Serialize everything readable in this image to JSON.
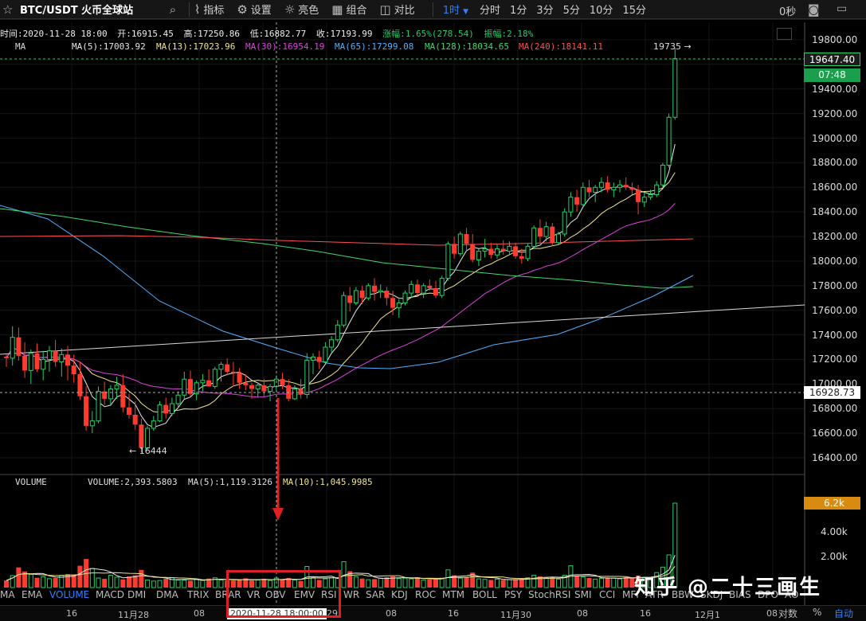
{
  "toolbar": {
    "favorite_icon": "star-outline-icon",
    "symbol": "BTC/USDT 火币全球站",
    "buttons": [
      {
        "icon": "indicator-icon",
        "label": "指标"
      },
      {
        "icon": "gear-icon",
        "label": "设置"
      },
      {
        "icon": "sun-icon",
        "label": "亮色"
      },
      {
        "icon": "grid-icon",
        "label": "组合"
      },
      {
        "icon": "compare-icon",
        "label": "对比"
      }
    ],
    "interval": "1时",
    "periods": [
      "分时",
      "1分",
      "3分",
      "5分",
      "10分",
      "15分"
    ],
    "seconds": "0秒"
  },
  "ohlc": {
    "time_label": "时间:2020-11-28 18:00",
    "open": "开:16915.45",
    "high": "高:17250.86",
    "low": "低:16882.77",
    "close": "收:17193.99",
    "change": "涨幅:1.65%(278.54)",
    "amplitude": "振幅:2.18%"
  },
  "ma": {
    "label": "MA",
    "items": [
      {
        "text": "MA(5):17003.92",
        "color": "#e8e8e8"
      },
      {
        "text": "MA(13):17023.96",
        "color": "#f0e68c"
      },
      {
        "text": "MA(30):16954.19",
        "color": "#e040e0"
      },
      {
        "text": "MA(65):17299.08",
        "color": "#4fb0ff"
      },
      {
        "text": "MA(128):18034.65",
        "color": "#3fd86f"
      },
      {
        "text": "MA(240):18141.11",
        "color": "#ff5050"
      }
    ]
  },
  "annotations": {
    "high": "19735 →",
    "low": "← 16444"
  },
  "volume": {
    "label": "VOLUME",
    "value": "VOLUME:2,393.5803",
    "ma5": "MA(5):1,119.3126",
    "ma10": "MA(10):1,045.9985",
    "last_tag": "6.2k"
  },
  "price_axis": {
    "labels": [
      "19800.00",
      "19400.00",
      "19200.00",
      "19000.00",
      "18800.00",
      "18600.00",
      "18400.00",
      "18200.00",
      "18000.00",
      "17800.00",
      "17600.00",
      "17400.00",
      "17200.00",
      "17000.00",
      "16800.00",
      "16600.00",
      "16400.00"
    ],
    "last_price": "19647.40",
    "countdown": "07:48",
    "cross_price": "16928.73",
    "vol_labels": [
      "4.00k",
      "2.00k"
    ]
  },
  "indicators": [
    "MA",
    "EMA",
    "VOLUME",
    "MACD",
    "DMI",
    "DMA",
    "TRIX",
    "BRAR",
    "VR",
    "OBV",
    "EMV",
    "RSI",
    "WR",
    "SAR",
    "KDJ",
    "ROC",
    "MTM",
    "BOLL",
    "PSY",
    "StochRSI",
    "SMI",
    "CCI",
    "MFI",
    "ATR",
    "BBW",
    "SKDJ",
    "BIAS",
    "DPO",
    "AO"
  ],
  "active_indicator": "VOLUME",
  "time_axis": {
    "labels": [
      "16",
      "11月28",
      "08",
      "16",
      "29",
      "08",
      "16",
      "11月30",
      "08",
      "16",
      "12月1",
      "08"
    ],
    "cursor_time": "2020-11-28 18:00:00",
    "log_label": "对数",
    "pct_label": "%",
    "auto_label": "自动"
  },
  "watermark": "知乎 @二十三画生",
  "colors": {
    "up": "#1dd26a",
    "down": "#ff3b30",
    "accent": "#2f7fff"
  },
  "chart_data": {
    "type": "candlestick",
    "symbol": "BTC/USDT",
    "interval": "1h",
    "y_range": [
      16300,
      19850
    ],
    "volume_range": [
      0,
      6500
    ],
    "overlays": [
      {
        "name": "MA(5)",
        "color": "#e8e8e8"
      },
      {
        "name": "MA(13)",
        "color": "#f0e68c"
      },
      {
        "name": "MA(30)",
        "color": "#e040e0"
      },
      {
        "name": "MA(65)",
        "color": "#4fb0ff"
      },
      {
        "name": "MA(128)",
        "color": "#3fd86f"
      },
      {
        "name": "MA(240)",
        "color": "#ff5050"
      }
    ],
    "hovered_candle": {
      "time": "2020-11-28 18:00",
      "open": 16915.45,
      "high": 17250.86,
      "low": 16882.77,
      "close": 17193.99
    },
    "session_high": 19735,
    "session_low": 16444,
    "last_price": 19647.4,
    "candles": [
      [
        17222,
        17240,
        17140,
        17210
      ],
      [
        17210,
        17470,
        17150,
        17380
      ],
      [
        17380,
        17460,
        17190,
        17230
      ],
      [
        17230,
        17340,
        17050,
        17110
      ],
      [
        17110,
        17280,
        17000,
        17250
      ],
      [
        17250,
        17330,
        17100,
        17120
      ],
      [
        17120,
        17270,
        17030,
        17200
      ],
      [
        17200,
        17310,
        17100,
        17270
      ],
      [
        17270,
        17360,
        17140,
        17180
      ],
      [
        17180,
        17290,
        17060,
        17240
      ],
      [
        17240,
        17310,
        17030,
        17150
      ],
      [
        17150,
        17240,
        17010,
        17080
      ],
      [
        17080,
        17180,
        16870,
        16900
      ],
      [
        16900,
        16980,
        16620,
        16660
      ],
      [
        16660,
        16780,
        16600,
        16700
      ],
      [
        16700,
        16980,
        16680,
        16940
      ],
      [
        16940,
        17020,
        16830,
        16880
      ],
      [
        16880,
        16990,
        16830,
        16960
      ],
      [
        16960,
        17060,
        16880,
        16990
      ],
      [
        16990,
        17080,
        16770,
        16810
      ],
      [
        16810,
        16920,
        16720,
        16750
      ],
      [
        16750,
        16860,
        16630,
        16670
      ],
      [
        16670,
        16720,
        16444,
        16480
      ],
      [
        16480,
        16660,
        16460,
        16640
      ],
      [
        16640,
        16740,
        16620,
        16700
      ],
      [
        16700,
        16860,
        16690,
        16830
      ],
      [
        16830,
        16890,
        16720,
        16760
      ],
      [
        16760,
        16890,
        16740,
        16840
      ],
      [
        16840,
        16940,
        16800,
        16910
      ],
      [
        16910,
        17100,
        16880,
        17040
      ],
      [
        17040,
        17110,
        16900,
        16920
      ],
      [
        16920,
        17030,
        16870,
        17010
      ],
      [
        17010,
        17080,
        16940,
        17030
      ],
      [
        17030,
        17120,
        16980,
        16980
      ],
      [
        16980,
        17140,
        16960,
        17120
      ],
      [
        17120,
        17180,
        17020,
        17160
      ],
      [
        17160,
        17210,
        17070,
        17100
      ],
      [
        17100,
        17180,
        16980,
        17090
      ],
      [
        17090,
        17130,
        16960,
        17010
      ],
      [
        17010,
        17080,
        16950,
        16990
      ],
      [
        16990,
        17010,
        16880,
        16960
      ],
      [
        16960,
        17010,
        16890,
        16990
      ],
      [
        16990,
        17040,
        16900,
        16940
      ],
      [
        16940,
        17000,
        16860,
        16980
      ],
      [
        16980,
        17070,
        16950,
        17040
      ],
      [
        17040,
        17090,
        16960,
        16990
      ],
      [
        16990,
        17040,
        16860,
        16880
      ],
      [
        16880,
        16990,
        16870,
        16960
      ],
      [
        16960,
        17040,
        16882,
        16915
      ],
      [
        16915,
        17251,
        16883,
        17194
      ],
      [
        17194,
        17250,
        17080,
        17220
      ],
      [
        17220,
        17270,
        17120,
        17180
      ],
      [
        17180,
        17340,
        17170,
        17300
      ],
      [
        17300,
        17390,
        17260,
        17360
      ],
      [
        17360,
        17520,
        17340,
        17480
      ],
      [
        17480,
        17750,
        17460,
        17720
      ],
      [
        17720,
        17790,
        17590,
        17660
      ],
      [
        17660,
        17790,
        17640,
        17760
      ],
      [
        17760,
        17800,
        17650,
        17700
      ],
      [
        17700,
        17820,
        17680,
        17800
      ],
      [
        17800,
        17860,
        17680,
        17750
      ],
      [
        17750,
        17810,
        17700,
        17760
      ],
      [
        17760,
        17790,
        17640,
        17700
      ],
      [
        17700,
        17760,
        17560,
        17620
      ],
      [
        17620,
        17690,
        17540,
        17660
      ],
      [
        17660,
        17760,
        17640,
        17740
      ],
      [
        17740,
        17840,
        17700,
        17810
      ],
      [
        17810,
        17850,
        17720,
        17740
      ],
      [
        17740,
        17820,
        17700,
        17800
      ],
      [
        17800,
        17850,
        17760,
        17780
      ],
      [
        17780,
        17840,
        17700,
        17720
      ],
      [
        17720,
        17880,
        17700,
        17860
      ],
      [
        17860,
        18160,
        17840,
        18140
      ],
      [
        18140,
        18200,
        18020,
        18060
      ],
      [
        18060,
        18240,
        18040,
        18220
      ],
      [
        18220,
        18270,
        18090,
        18140
      ],
      [
        18140,
        18220,
        17990,
        18010
      ],
      [
        18010,
        18100,
        17960,
        18080
      ],
      [
        18080,
        18180,
        18030,
        18100
      ],
      [
        18100,
        18150,
        18020,
        18050
      ],
      [
        18050,
        18140,
        18020,
        18100
      ],
      [
        18100,
        18170,
        18050,
        18080
      ],
      [
        18080,
        18160,
        18050,
        18120
      ],
      [
        18120,
        18150,
        18020,
        18040
      ],
      [
        18040,
        18100,
        17980,
        18020
      ],
      [
        18020,
        18140,
        18000,
        18120
      ],
      [
        18120,
        18290,
        18100,
        18270
      ],
      [
        18270,
        18340,
        18150,
        18200
      ],
      [
        18200,
        18320,
        18160,
        18280
      ],
      [
        18280,
        18310,
        18120,
        18150
      ],
      [
        18150,
        18240,
        18130,
        18220
      ],
      [
        18220,
        18430,
        18200,
        18400
      ],
      [
        18400,
        18560,
        18360,
        18520
      ],
      [
        18520,
        18580,
        18400,
        18460
      ],
      [
        18460,
        18640,
        18440,
        18600
      ],
      [
        18600,
        18660,
        18520,
        18560
      ],
      [
        18560,
        18620,
        18480,
        18600
      ],
      [
        18600,
        18680,
        18560,
        18640
      ],
      [
        18640,
        18690,
        18560,
        18580
      ],
      [
        18580,
        18640,
        18520,
        18600
      ],
      [
        18600,
        18660,
        18560,
        18620
      ],
      [
        18620,
        18680,
        18580,
        18600
      ],
      [
        18600,
        18640,
        18540,
        18580
      ],
      [
        18580,
        18620,
        18380,
        18480
      ],
      [
        18480,
        18560,
        18440,
        18520
      ],
      [
        18520,
        18580,
        18500,
        18540
      ],
      [
        18540,
        18650,
        18520,
        18620
      ],
      [
        18620,
        18800,
        18600,
        18780
      ],
      [
        18780,
        19200,
        18760,
        19170
      ],
      [
        19170,
        19735,
        19150,
        19647.4
      ]
    ],
    "volumes": [
      520,
      880,
      1480,
      1180,
      960,
      720,
      800,
      650,
      700,
      900,
      980,
      940,
      1600,
      2100,
      1400,
      700,
      640,
      900,
      760,
      600,
      820,
      900,
      1300,
      560,
      480,
      520,
      640,
      720,
      560,
      540,
      500,
      620,
      520,
      660,
      720,
      560,
      520,
      520,
      600,
      680,
      520,
      560,
      640,
      520,
      700,
      560,
      700,
      560,
      480,
      1550,
      740,
      560,
      640,
      720,
      680,
      1900,
      1200,
      800,
      660,
      580,
      620,
      700,
      760,
      820,
      660,
      700,
      640,
      760,
      560,
      600,
      600,
      680,
      1300,
      900,
      700,
      760,
      1100,
      640,
      600,
      560,
      620,
      560,
      580,
      600,
      620,
      720,
      900,
      820,
      700,
      760,
      620,
      900,
      1600,
      840,
      780,
      700,
      620,
      680,
      740,
      700,
      640,
      760,
      700,
      880,
      760,
      700,
      1100,
      1500,
      2400,
      6200
    ]
  }
}
